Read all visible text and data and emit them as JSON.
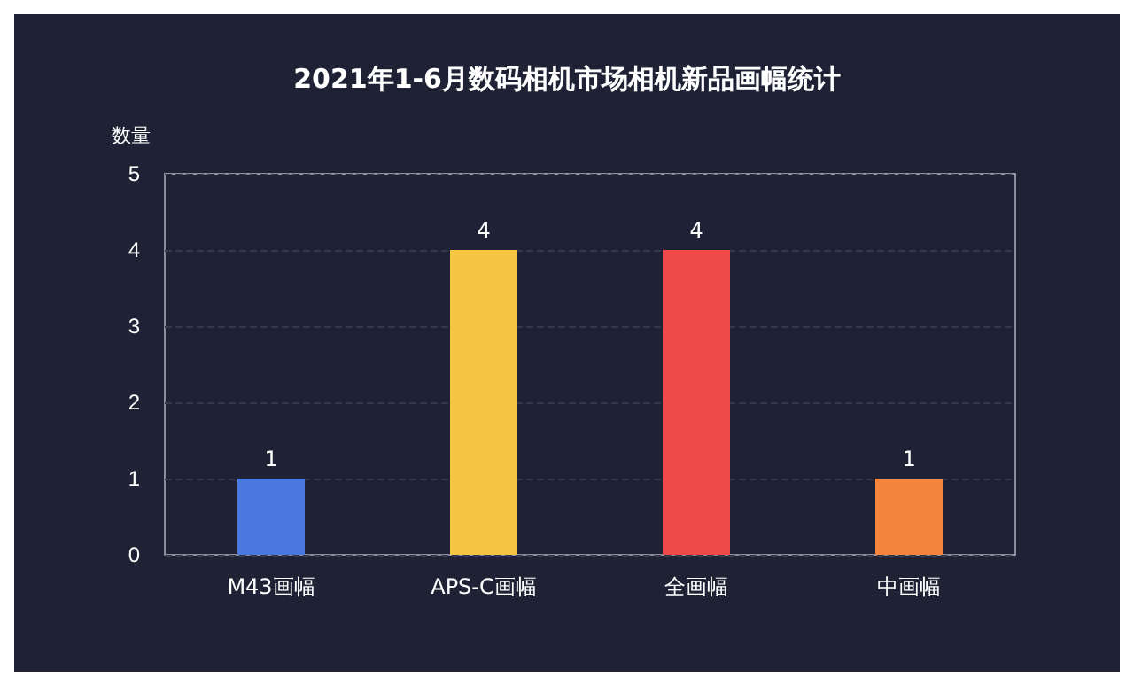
{
  "chart_data": {
    "type": "bar",
    "title": "2021年1-6月数码相机市场相机新品画幅统计",
    "ylabel": "数量",
    "categories": [
      "M43画幅",
      "APS-C画幅",
      "全画幅",
      "中画幅"
    ],
    "values": [
      1,
      4,
      4,
      1
    ],
    "colors": [
      "#4a7ae0",
      "#f6c544",
      "#ee4a4a",
      "#f5853d"
    ],
    "ylim": [
      0,
      5
    ],
    "yticks": [
      0,
      1,
      2,
      3,
      4,
      5
    ],
    "grid": "y",
    "data_labels": true
  }
}
